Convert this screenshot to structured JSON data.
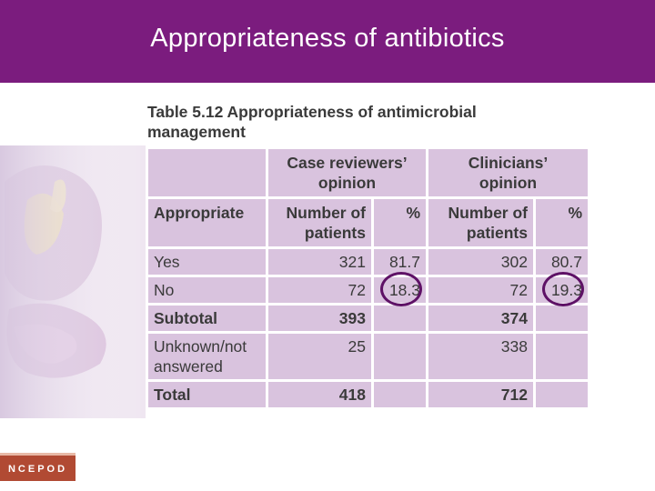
{
  "slide": {
    "title": "Appropriateness of antibiotics"
  },
  "table": {
    "caption_line1": "Table 5.12 Appropriateness of antimicrobial",
    "caption_line2": "management",
    "group_headers": {
      "reviewers_line1": "Case reviewers’",
      "reviewers_line2": "opinion",
      "clinicians_line1": "Clinicians’",
      "clinicians_line2": "opinion"
    },
    "column_headers": {
      "appropriate": "Appropriate",
      "number_line1": "Number of",
      "number_line2": "patients",
      "percent": "%"
    },
    "rows": [
      {
        "label": "Yes",
        "reviewers_n": "321",
        "reviewers_pct": "81.7",
        "clinicians_n": "302",
        "clinicians_pct": "80.7"
      },
      {
        "label": "No",
        "reviewers_n": "72",
        "reviewers_pct": "18.3",
        "clinicians_n": "72",
        "clinicians_pct": "19.3"
      },
      {
        "label": "Subtotal",
        "reviewers_n": "393",
        "reviewers_pct": "",
        "clinicians_n": "374",
        "clinicians_pct": ""
      },
      {
        "label_line1": "Unknown/not",
        "label_line2": "answered",
        "reviewers_n": "25",
        "reviewers_pct": "",
        "clinicians_n": "338",
        "clinicians_pct": ""
      },
      {
        "label": "Total",
        "reviewers_n": "418",
        "reviewers_pct": "",
        "clinicians_n": "712",
        "clinicians_pct": ""
      }
    ]
  },
  "logo": {
    "text": "NCEPOD"
  },
  "colors": {
    "header": "#7b1c7e",
    "cell": "#d9c3de",
    "circle": "#5e1166",
    "logo": "#b14a33"
  }
}
